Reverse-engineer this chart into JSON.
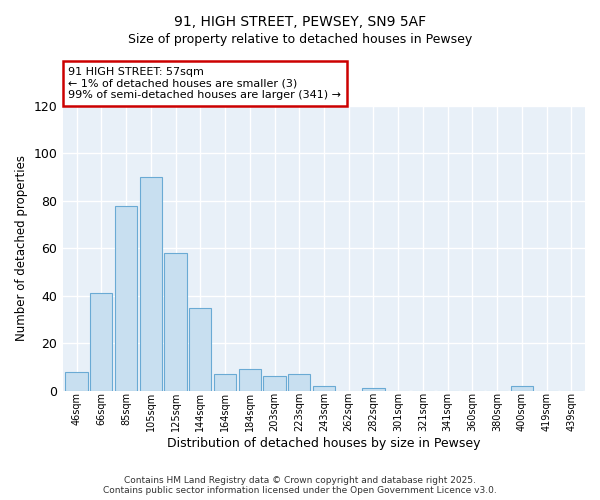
{
  "title": "91, HIGH STREET, PEWSEY, SN9 5AF",
  "subtitle": "Size of property relative to detached houses in Pewsey",
  "xlabel": "Distribution of detached houses by size in Pewsey",
  "ylabel": "Number of detached properties",
  "bar_labels": [
    "46sqm",
    "66sqm",
    "85sqm",
    "105sqm",
    "125sqm",
    "144sqm",
    "164sqm",
    "184sqm",
    "203sqm",
    "223sqm",
    "243sqm",
    "262sqm",
    "282sqm",
    "301sqm",
    "321sqm",
    "341sqm",
    "360sqm",
    "380sqm",
    "400sqm",
    "419sqm",
    "439sqm"
  ],
  "bar_values": [
    8,
    41,
    78,
    90,
    58,
    35,
    7,
    9,
    6,
    7,
    2,
    0,
    1,
    0,
    0,
    0,
    0,
    0,
    2,
    0,
    0
  ],
  "bar_color": "#c8dff0",
  "bar_edge_color": "#6aaad4",
  "ylim": [
    0,
    120
  ],
  "yticks": [
    0,
    20,
    40,
    60,
    80,
    100,
    120
  ],
  "annotation_title": "91 HIGH STREET: 57sqm",
  "annotation_line1": "← 1% of detached houses are smaller (3)",
  "annotation_line2": "99% of semi-detached houses are larger (341) →",
  "annotation_box_color": "#ffffff",
  "annotation_box_edge": "#cc0000",
  "footer_line1": "Contains HM Land Registry data © Crown copyright and database right 2025.",
  "footer_line2": "Contains public sector information licensed under the Open Government Licence v3.0.",
  "background_color": "#ffffff",
  "plot_bg_color": "#e8f0f8",
  "grid_color": "#ffffff"
}
